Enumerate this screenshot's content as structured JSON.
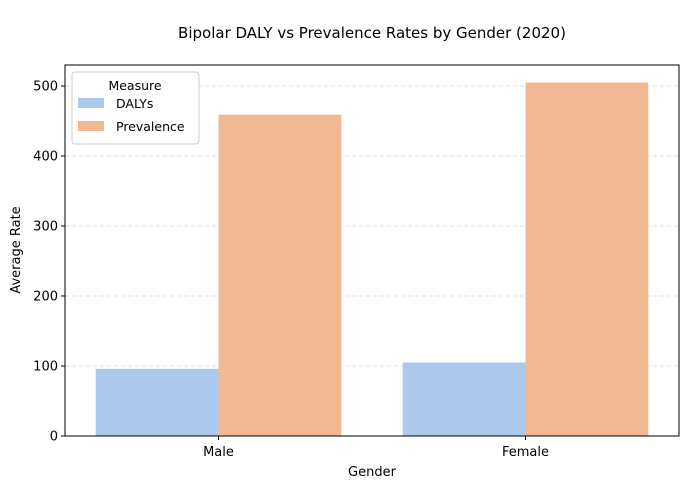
{
  "chart_data": {
    "type": "bar",
    "title": "Bipolar DALY vs Prevalence Rates by Gender (2020)",
    "xlabel": "Gender",
    "ylabel": "Average Rate",
    "categories": [
      "Male",
      "Female"
    ],
    "series": [
      {
        "name": "DALYs",
        "values": [
          96,
          105
        ],
        "color": "#abc9ed"
      },
      {
        "name": "Prevalence",
        "values": [
          459,
          505
        ],
        "color": "#f0b993"
      }
    ],
    "ylim": [
      0,
      530
    ],
    "yticks": [
      0,
      100,
      200,
      300,
      400,
      500
    ],
    "grid": true,
    "legend": {
      "title": "Measure",
      "placement": "top-left"
    }
  }
}
